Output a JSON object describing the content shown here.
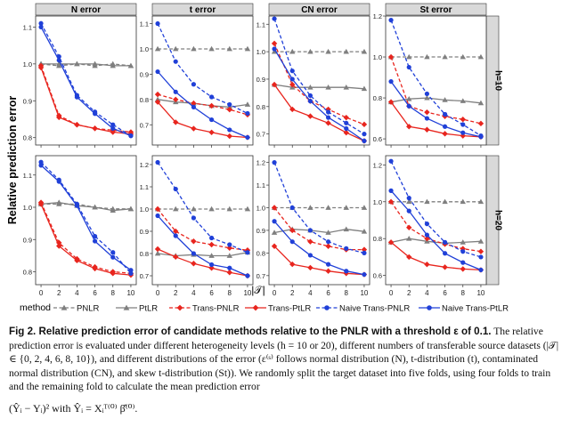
{
  "chart_data": {
    "type": "line",
    "ylabel": "Relative prediction error",
    "xlabel": "|𝒯|",
    "x": [
      0,
      2,
      4,
      6,
      8,
      10
    ],
    "colors": {
      "PNLR": "#7f7f7f",
      "PtLR": "#7f7f7f",
      "Trans-PNLR": "#e8251e",
      "Trans-PtLR": "#e8251e",
      "Naive Trans-PNLR": "#2040d8",
      "Naive Trans-PtLR": "#2040d8"
    },
    "dashed": [
      "PNLR",
      "Trans-PNLR",
      "Naive Trans-PNLR"
    ],
    "legend": {
      "title": "method",
      "position": "bottom",
      "items": [
        "PNLR",
        "PtLR",
        "Trans-PNLR",
        "Trans-PtLR",
        "Naive Trans-PNLR",
        "Naive Trans-PtLR"
      ]
    },
    "column_titles": [
      "N error",
      "t error",
      "CN error",
      "St error"
    ],
    "row_titles": [
      "h=10",
      "h=20"
    ],
    "panels": [
      {
        "row": "h=10",
        "col": "N error",
        "ylim": [
          0.78,
          1.13
        ],
        "yticks": [
          0.8,
          0.9,
          1.0,
          1.1
        ],
        "series": [
          {
            "name": "PNLR",
            "values": [
              1.0,
              0.995,
              1.0,
              0.995,
              1.0,
              0.995
            ]
          },
          {
            "name": "PtLR",
            "values": [
              1.0,
              1.0,
              1.0,
              1.0,
              0.995,
              0.995
            ]
          },
          {
            "name": "Trans-PNLR",
            "values": [
              0.995,
              0.86,
              0.835,
              0.825,
              0.82,
              0.815
            ]
          },
          {
            "name": "Trans-PtLR",
            "values": [
              0.99,
              0.855,
              0.835,
              0.825,
              0.815,
              0.81
            ]
          },
          {
            "name": "Naive Trans-PNLR",
            "values": [
              1.11,
              1.02,
              0.915,
              0.87,
              0.835,
              0.805
            ]
          },
          {
            "name": "Naive Trans-PtLR",
            "values": [
              1.1,
              1.01,
              0.91,
              0.865,
              0.825,
              0.805
            ]
          }
        ]
      },
      {
        "row": "h=10",
        "col": "t error",
        "ylim": [
          0.62,
          1.13
        ],
        "yticks": [
          0.7,
          0.8,
          0.9,
          1.0,
          1.1
        ],
        "series": [
          {
            "name": "PNLR",
            "values": [
              1.0,
              1.0,
              1.0,
              1.0,
              1.0,
              1.0
            ]
          },
          {
            "name": "PtLR",
            "values": [
              0.8,
              0.79,
              0.785,
              0.775,
              0.77,
              0.78
            ]
          },
          {
            "name": "Trans-PNLR",
            "values": [
              0.82,
              0.8,
              0.785,
              0.775,
              0.76,
              0.74
            ]
          },
          {
            "name": "Trans-PtLR",
            "values": [
              0.79,
              0.71,
              0.685,
              0.67,
              0.655,
              0.65
            ]
          },
          {
            "name": "Naive Trans-PNLR",
            "values": [
              1.1,
              0.95,
              0.86,
              0.81,
              0.78,
              0.745
            ]
          },
          {
            "name": "Naive Trans-PtLR",
            "values": [
              0.91,
              0.83,
              0.77,
              0.72,
              0.68,
              0.65
            ]
          }
        ]
      },
      {
        "row": "h=10",
        "col": "CN error",
        "ylim": [
          0.66,
          1.13
        ],
        "yticks": [
          0.7,
          0.8,
          0.9,
          1.0,
          1.1
        ],
        "series": [
          {
            "name": "PNLR",
            "values": [
              1.0,
              1.0,
              1.0,
              1.0,
              1.0,
              1.0
            ]
          },
          {
            "name": "PtLR",
            "values": [
              0.88,
              0.87,
              0.87,
              0.87,
              0.87,
              0.865
            ]
          },
          {
            "name": "Trans-PNLR",
            "values": [
              1.03,
              0.88,
              0.82,
              0.79,
              0.76,
              0.735
            ]
          },
          {
            "name": "Trans-PtLR",
            "values": [
              0.88,
              0.79,
              0.765,
              0.74,
              0.705,
              0.675
            ]
          },
          {
            "name": "Naive Trans-PNLR",
            "values": [
              1.12,
              0.93,
              0.84,
              0.78,
              0.74,
              0.7
            ]
          },
          {
            "name": "Naive Trans-PtLR",
            "values": [
              1.01,
              0.9,
              0.82,
              0.76,
              0.72,
              0.675
            ]
          }
        ]
      },
      {
        "row": "h=10",
        "col": "St error",
        "ylim": [
          0.57,
          1.2
        ],
        "yticks": [
          0.6,
          0.8,
          1.0,
          1.2
        ],
        "series": [
          {
            "name": "PNLR",
            "values": [
              1.0,
              1.0,
              1.0,
              1.0,
              1.0,
              1.0
            ]
          },
          {
            "name": "PtLR",
            "values": [
              0.78,
              0.795,
              0.8,
              0.79,
              0.785,
              0.775
            ]
          },
          {
            "name": "Trans-PNLR",
            "values": [
              1.0,
              0.76,
              0.73,
              0.71,
              0.695,
              0.675
            ]
          },
          {
            "name": "Trans-PtLR",
            "values": [
              0.78,
              0.66,
              0.645,
              0.625,
              0.615,
              0.61
            ]
          },
          {
            "name": "Naive Trans-PNLR",
            "values": [
              1.18,
              0.95,
              0.82,
              0.72,
              0.67,
              0.615
            ]
          },
          {
            "name": "Naive Trans-PtLR",
            "values": [
              0.88,
              0.76,
              0.7,
              0.66,
              0.63,
              0.61
            ]
          }
        ]
      },
      {
        "row": "h=20",
        "col": "N error",
        "ylim": [
          0.76,
          1.16
        ],
        "yticks": [
          0.8,
          0.9,
          1.0,
          1.1
        ],
        "series": [
          {
            "name": "PNLR",
            "values": [
              1.01,
              1.01,
              1.01,
              1.0,
              0.995,
              0.995
            ]
          },
          {
            "name": "PtLR",
            "values": [
              1.01,
              1.015,
              1.005,
              1.0,
              0.99,
              0.995
            ]
          },
          {
            "name": "Trans-PNLR",
            "values": [
              1.015,
              0.89,
              0.84,
              0.815,
              0.8,
              0.795
            ]
          },
          {
            "name": "Trans-PtLR",
            "values": [
              1.01,
              0.88,
              0.835,
              0.81,
              0.795,
              0.79
            ]
          },
          {
            "name": "Naive Trans-PNLR",
            "values": [
              1.14,
              1.085,
              1.01,
              0.91,
              0.86,
              0.795
            ]
          },
          {
            "name": "Naive Trans-PtLR",
            "values": [
              1.13,
              1.08,
              1.005,
              0.895,
              0.845,
              0.805
            ]
          }
        ]
      },
      {
        "row": "h=20",
        "col": "t error",
        "ylim": [
          0.66,
          1.24
        ],
        "yticks": [
          0.7,
          0.8,
          0.9,
          1.0,
          1.1,
          1.2
        ],
        "series": [
          {
            "name": "PNLR",
            "values": [
              1.0,
              1.0,
              1.0,
              1.0,
              1.0,
              1.0
            ]
          },
          {
            "name": "PtLR",
            "values": [
              0.8,
              0.79,
              0.795,
              0.79,
              0.79,
              0.805
            ]
          },
          {
            "name": "Trans-PNLR",
            "values": [
              1.0,
              0.9,
              0.855,
              0.84,
              0.825,
              0.815
            ]
          },
          {
            "name": "Trans-PtLR",
            "values": [
              0.82,
              0.785,
              0.755,
              0.735,
              0.715,
              0.7
            ]
          },
          {
            "name": "Naive Trans-PNLR",
            "values": [
              1.21,
              1.09,
              0.96,
              0.87,
              0.84,
              0.805
            ]
          },
          {
            "name": "Naive Trans-PtLR",
            "values": [
              0.97,
              0.88,
              0.8,
              0.75,
              0.735,
              0.7
            ]
          }
        ]
      },
      {
        "row": "h=20",
        "col": "CN error",
        "ylim": [
          0.66,
          1.23
        ],
        "yticks": [
          0.7,
          0.8,
          0.9,
          1.0,
          1.1,
          1.2
        ],
        "series": [
          {
            "name": "PNLR",
            "values": [
              1.0,
              1.0,
              1.0,
              1.0,
              1.0,
              1.0
            ]
          },
          {
            "name": "PtLR",
            "values": [
              0.89,
              0.905,
              0.9,
              0.89,
              0.905,
              0.895
            ]
          },
          {
            "name": "Trans-PNLR",
            "values": [
              1.0,
              0.9,
              0.85,
              0.83,
              0.815,
              0.815
            ]
          },
          {
            "name": "Trans-PtLR",
            "values": [
              0.83,
              0.75,
              0.735,
              0.72,
              0.71,
              0.705
            ]
          },
          {
            "name": "Naive Trans-PNLR",
            "values": [
              1.2,
              1.0,
              0.9,
              0.85,
              0.82,
              0.8
            ]
          },
          {
            "name": "Naive Trans-PtLR",
            "values": [
              0.94,
              0.85,
              0.79,
              0.75,
              0.72,
              0.705
            ]
          }
        ]
      },
      {
        "row": "h=20",
        "col": "St error",
        "ylim": [
          0.55,
          1.25
        ],
        "yticks": [
          0.6,
          0.8,
          1.0,
          1.2
        ],
        "series": [
          {
            "name": "PNLR",
            "values": [
              1.0,
              1.0,
              1.0,
              1.0,
              1.0,
              1.0
            ]
          },
          {
            "name": "PtLR",
            "values": [
              0.78,
              0.8,
              0.785,
              0.775,
              0.78,
              0.785
            ]
          },
          {
            "name": "Trans-PNLR",
            "values": [
              1.0,
              0.86,
              0.8,
              0.77,
              0.745,
              0.73
            ]
          },
          {
            "name": "Trans-PtLR",
            "values": [
              0.78,
              0.7,
              0.66,
              0.645,
              0.635,
              0.63
            ]
          },
          {
            "name": "Naive Trans-PNLR",
            "values": [
              1.22,
              1.02,
              0.88,
              0.78,
              0.73,
              0.7
            ]
          },
          {
            "name": "Naive Trans-PtLR",
            "values": [
              1.06,
              0.95,
              0.82,
              0.72,
              0.67,
              0.63
            ]
          }
        ]
      }
    ]
  },
  "caption": {
    "heading": "Fig 2. Relative prediction error of candidate methods relative to the PNLR with a threshold ε of 0.1.",
    "body": " The relative prediction error is evaluated under different heterogeneity levels (h = 10 or 20), different numbers of transferable source datasets (|𝒯| ∈ {0, 2, 4, 6, 8, 10}), and different distributions of the error (ε⁽ˢ⁾ follows normal distribution (N), t-distribution (t), contaminated normal distribution (CN), and skew t-distribution (St)). We randomly split the target dataset into five folds, using four folds to train and the remaining fold to calculate the mean prediction error",
    "formula": "(Ŷᵢ − Yᵢ)² with Ŷᵢ = Xᵢᵀ⁽⁰⁾ β̂⁽⁰⁾."
  }
}
